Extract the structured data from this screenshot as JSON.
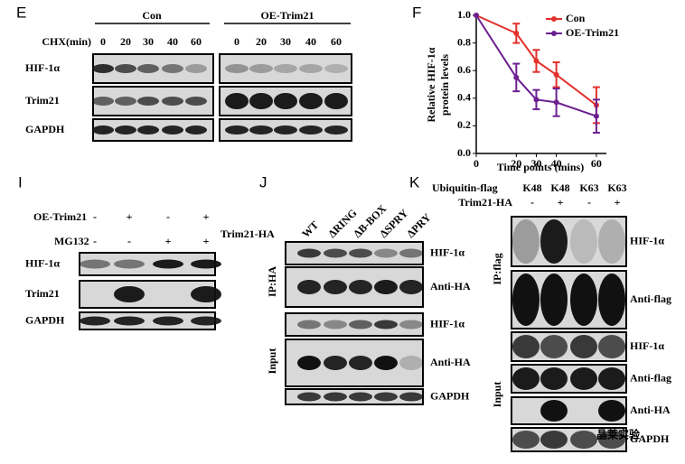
{
  "panel_e": {
    "letter": "E",
    "groups": [
      "Con",
      "OE-Trim21"
    ],
    "condition": "CHX(min)",
    "lanes": [
      [
        "0",
        "20",
        "30",
        "40",
        "60"
      ],
      [
        "0",
        "20",
        "30",
        "40",
        "60"
      ]
    ],
    "blots": [
      "HIF-1α",
      "Trim21",
      "GAPDH"
    ]
  },
  "chart_data": {
    "type": "line",
    "letter": "F",
    "xlabel": "Time points (mins)",
    "ylabel": [
      "Relative HIF-1α",
      "protein levels"
    ],
    "x": [
      0,
      20,
      30,
      40,
      60
    ],
    "series": [
      {
        "name": "Con",
        "color": "#e3302b",
        "values": [
          1,
          0.87,
          0.67,
          0.57,
          0.35
        ],
        "errors": [
          0,
          0.07,
          0.08,
          0.09,
          0.13
        ]
      },
      {
        "name": "OE-Trim21",
        "color": "#6b2090",
        "values": [
          1,
          0.55,
          0.39,
          0.37,
          0.27
        ],
        "errors": [
          0,
          0.1,
          0.07,
          0.1,
          0.12
        ]
      }
    ],
    "xlim": [
      0,
      65
    ],
    "xticks": [
      0,
      20,
      30,
      40,
      60
    ],
    "ylim": [
      0,
      1
    ],
    "yticks": [
      {
        "value": 0,
        "label": "0.0"
      },
      0.2,
      0.4,
      0.6,
      0.8,
      {
        "value": 1,
        "label": "1.0"
      }
    ],
    "legend": "upper right"
  },
  "panel_i": {
    "letter": "I",
    "treatments": [
      {
        "name": "OE-Trim21",
        "signs": [
          "-",
          "+",
          "-",
          "+"
        ]
      },
      {
        "name": "MG132",
        "signs": [
          "-",
          "-",
          "+",
          "+"
        ]
      }
    ],
    "blots": [
      "HIF-1α",
      "Trim21",
      "GAPDH"
    ]
  },
  "panel_j": {
    "letter": "J",
    "construct": "Trim21-HA",
    "lanes": [
      "WT",
      "ΔRING",
      "ΔB-BOX",
      "ΔSPRY",
      "ΔPRY"
    ],
    "sections": [
      "IP:HA",
      "Input"
    ],
    "blots": [
      "HIF-1α",
      "Anti-HA",
      "HIF-1α",
      "Anti-HA",
      "GAPDH"
    ]
  },
  "panel_k": {
    "letter": "K",
    "ubiquitin": {
      "name": "Ubiquitin-flag",
      "lanes": [
        "K48",
        "K48",
        "K63",
        "K63"
      ]
    },
    "construct": {
      "name": "Trim21-HA",
      "signs": [
        "-",
        "+",
        "-",
        "+"
      ]
    },
    "sections": [
      "IP:flag",
      "Input"
    ],
    "blots": [
      "HIF-1α",
      "Anti-flag",
      "HIF-1α",
      "Anti-flag",
      "Anti-HA",
      "GAPDH"
    ]
  },
  "watermark": "晶莱实验"
}
